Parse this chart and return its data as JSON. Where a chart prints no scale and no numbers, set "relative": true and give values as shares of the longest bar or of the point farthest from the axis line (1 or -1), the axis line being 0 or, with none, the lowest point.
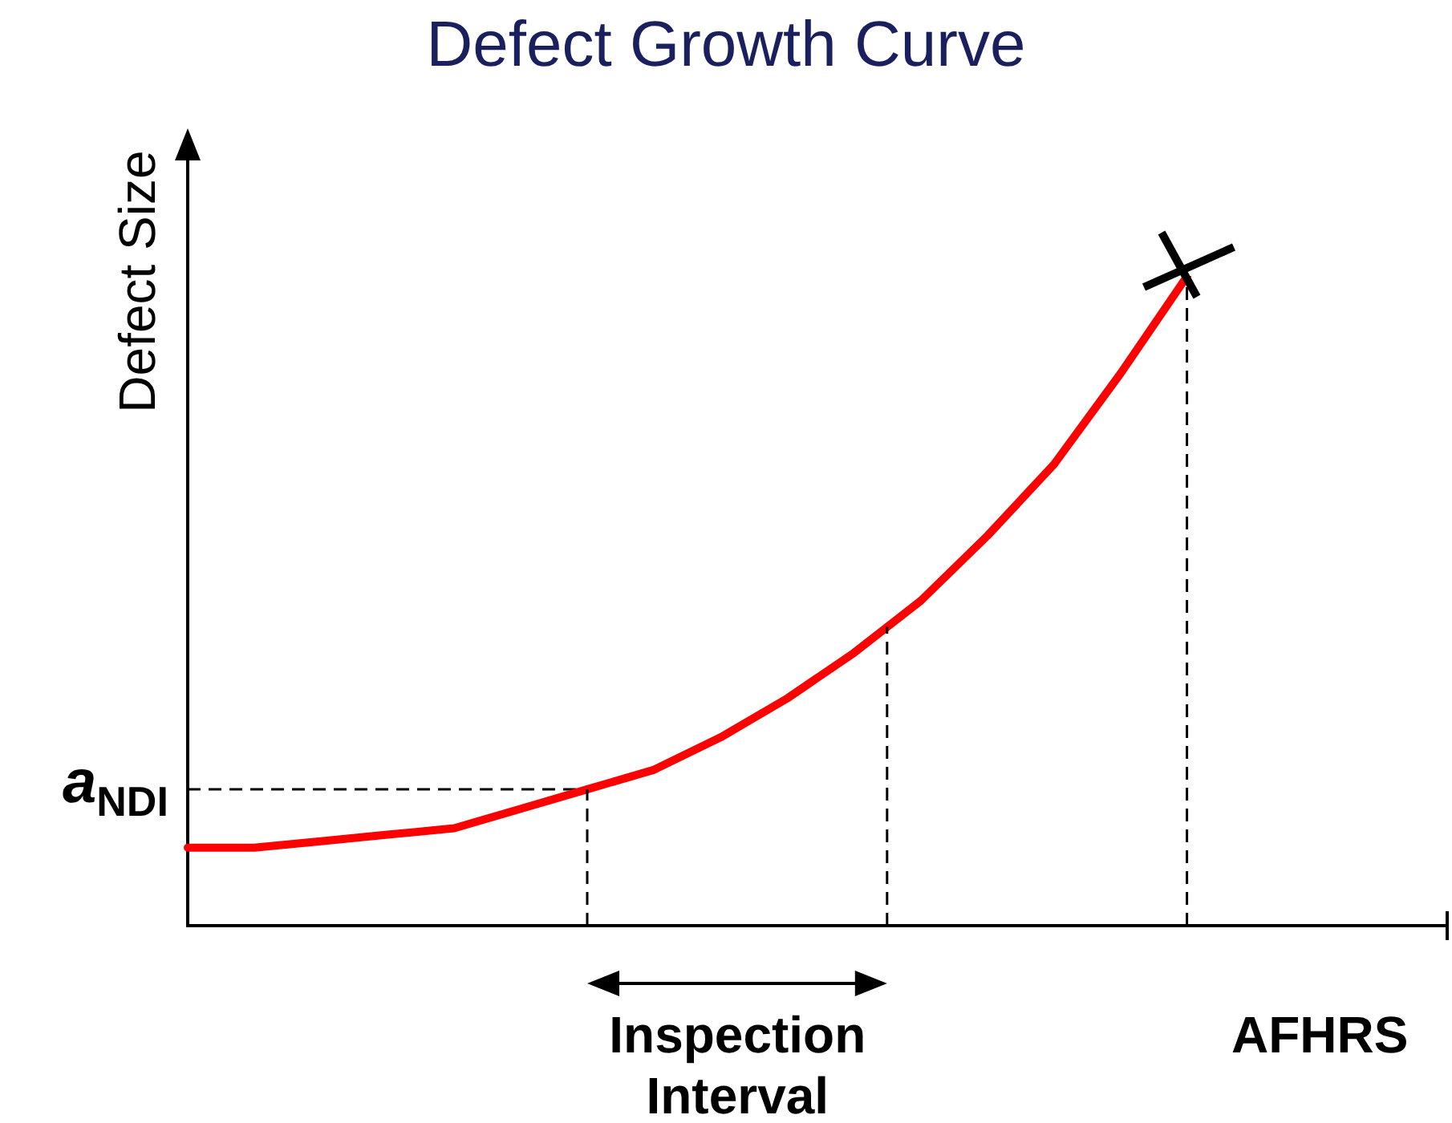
{
  "chart_data": {
    "type": "line",
    "title": "Defect Growth Curve",
    "xlabel": "AFHRS",
    "ylabel": "Defect Size",
    "relative": true,
    "legend": false,
    "categories": [
      null,
      null,
      null,
      null,
      null,
      null,
      null,
      null,
      null,
      null,
      null,
      null,
      null,
      null,
      null,
      null
    ],
    "series": [
      {
        "color": "#ff0000",
        "values": [
          0.12,
          0.12,
          0.13,
          0.14,
          0.15,
          0.18,
          0.21,
          0.24,
          0.29,
          0.35,
          0.42,
          0.5,
          0.6,
          0.71,
          0.85,
          1
        ]
      }
    ],
    "ref_lines": [
      {
        "axis": "y",
        "value": 0.21,
        "label": "a$_{NDI}$",
        "line_style": "dashed"
      }
    ],
    "annotations": [
      "Inspection Interval"
    ]
  }
}
